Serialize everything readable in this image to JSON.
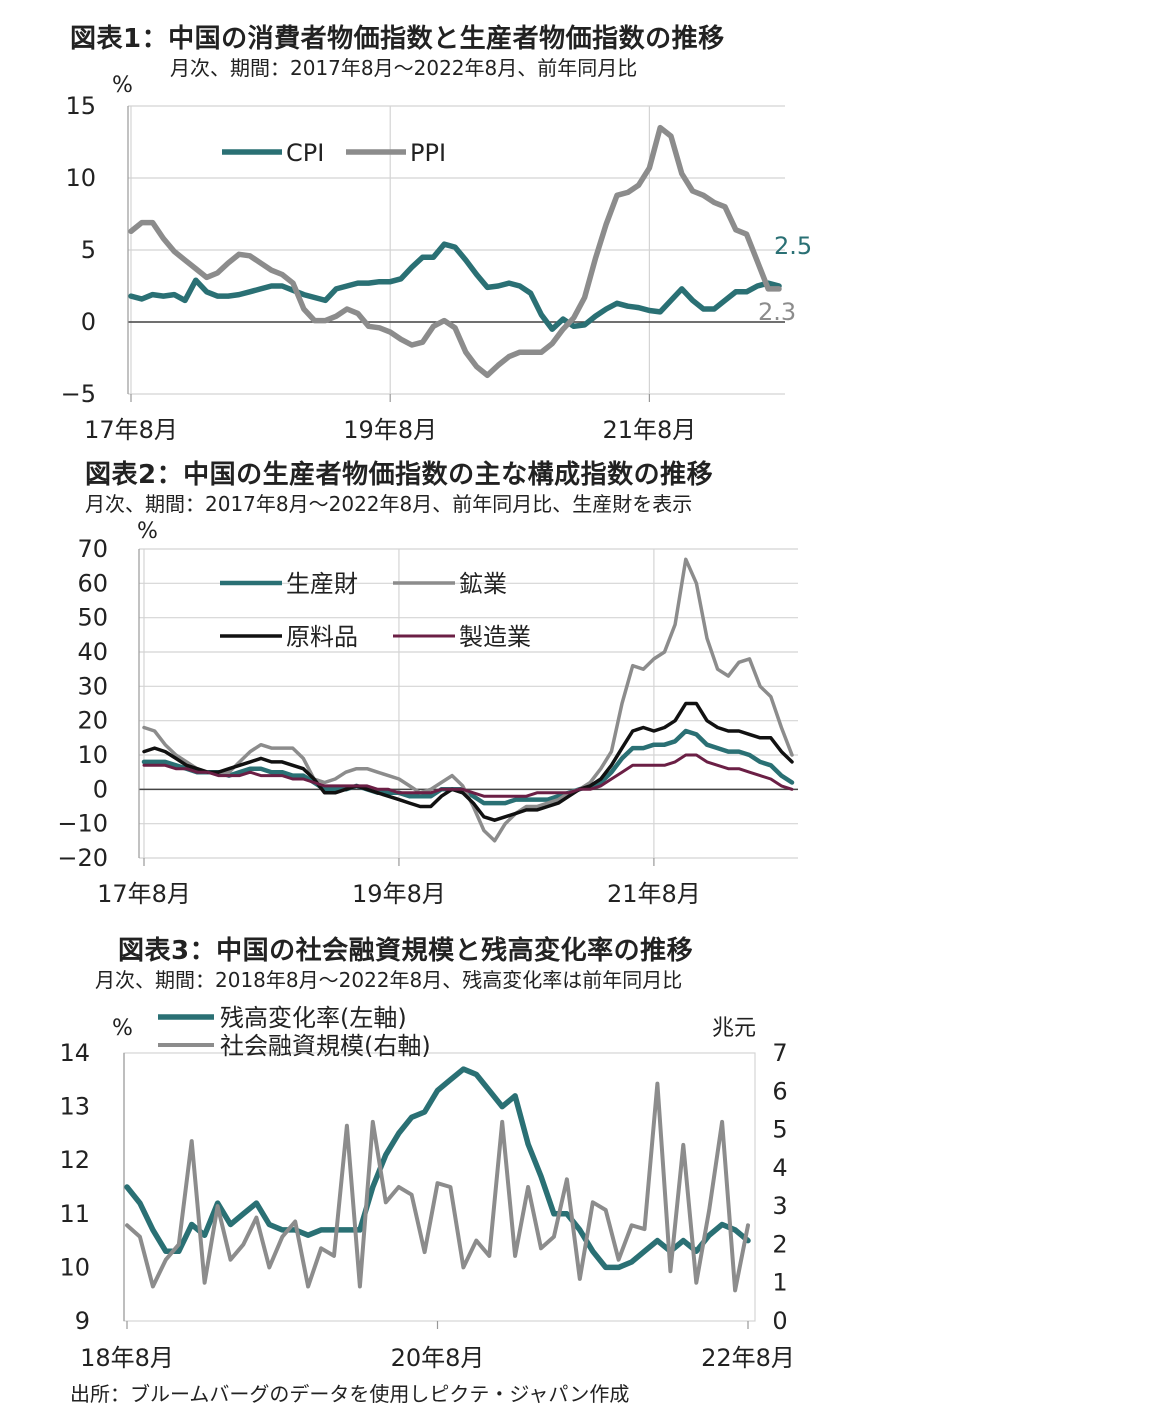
{
  "colors": {
    "teal": "#2a7074",
    "gray": "#8c8c8c",
    "black": "#111111",
    "maroon": "#6b1f45",
    "grid": "#d4d4d4"
  },
  "source": "出所：ブルームバーグのデータを使用しピクテ・ジャパン作成",
  "chart_data": [
    {
      "type": "line",
      "title": "図表1：中国の消費者物価指数と生産者物価指数の推移",
      "subtitle": "月次、期間：2017年8月～2022年8月、前年同月比",
      "unit": "%",
      "ylim": [
        -5,
        15
      ],
      "yticks": [
        -5,
        0,
        5,
        10,
        15
      ],
      "xlabels": [
        "17年8月",
        "19年8月",
        "21年8月"
      ],
      "xlabel_index": [
        0,
        24,
        48
      ],
      "grid": true,
      "legend_position": "top-left",
      "end_labels": {
        "CPI": "2.5",
        "PPI": "2.3"
      },
      "series": [
        {
          "name": "CPI",
          "color": "#2a7074",
          "values": [
            1.8,
            1.6,
            1.9,
            1.8,
            1.9,
            1.5,
            2.9,
            2.1,
            1.8,
            1.8,
            1.9,
            2.1,
            2.3,
            2.5,
            2.5,
            2.2,
            1.9,
            1.7,
            1.5,
            2.3,
            2.5,
            2.7,
            2.7,
            2.8,
            2.8,
            3.0,
            3.8,
            4.5,
            4.5,
            5.4,
            5.2,
            4.3,
            3.3,
            2.4,
            2.5,
            2.7,
            2.5,
            2.0,
            0.5,
            -0.5,
            0.2,
            -0.3,
            -0.2,
            0.4,
            0.9,
            1.3,
            1.1,
            1.0,
            0.8,
            0.7,
            1.5,
            2.3,
            1.5,
            0.9,
            0.9,
            1.5,
            2.1,
            2.1,
            2.5,
            2.7,
            2.5
          ]
        },
        {
          "name": "PPI",
          "color": "#8c8c8c",
          "values": [
            6.3,
            6.9,
            6.9,
            5.8,
            4.9,
            4.3,
            3.7,
            3.1,
            3.4,
            4.1,
            4.7,
            4.6,
            4.1,
            3.6,
            3.3,
            2.7,
            0.9,
            0.1,
            0.1,
            0.4,
            0.9,
            0.6,
            -0.3,
            -0.4,
            -0.7,
            -1.2,
            -1.6,
            -1.4,
            -0.3,
            0.1,
            -0.4,
            -2.1,
            -3.1,
            -3.7,
            -3.0,
            -2.4,
            -2.1,
            -2.1,
            -2.1,
            -1.5,
            -0.5,
            0.3,
            1.7,
            4.4,
            6.8,
            8.8,
            9.0,
            9.5,
            10.7,
            13.5,
            12.9,
            10.3,
            9.1,
            8.8,
            8.3,
            8.0,
            6.4,
            6.1,
            4.2,
            2.3,
            2.3
          ]
        }
      ]
    },
    {
      "type": "line",
      "title": "図表2：中国の生産者物価指数の主な構成指数の推移",
      "subtitle": "月次、期間：2017年8月～2022年8月、前年同月比、生産財を表示",
      "unit": "%",
      "ylim": [
        -20,
        70
      ],
      "yticks": [
        -20,
        -10,
        0,
        10,
        20,
        30,
        40,
        50,
        60,
        70
      ],
      "xlabels": [
        "17年8月",
        "19年8月",
        "21年8月"
      ],
      "xlabel_index": [
        0,
        24,
        48
      ],
      "grid": true,
      "legend_position": "top-left",
      "series": [
        {
          "name": "生産財",
          "color": "#2a7074",
          "values": [
            8,
            8,
            8,
            7,
            6,
            5,
            5,
            5,
            4,
            5,
            6,
            6,
            5,
            5,
            4,
            4,
            2,
            0,
            0,
            0,
            1,
            0,
            -1,
            -1,
            -1,
            -2,
            -2,
            -2,
            0,
            0,
            0,
            -2,
            -4,
            -4,
            -4,
            -3,
            -3,
            -3,
            -3,
            -2,
            -1,
            0,
            1,
            2,
            5,
            9,
            12,
            12,
            13,
            13,
            14,
            17,
            16,
            13,
            12,
            11,
            11,
            10,
            8,
            7,
            4,
            2
          ]
        },
        {
          "name": "鉱業",
          "color": "#8c8c8c",
          "values": [
            18,
            17,
            13,
            10,
            8,
            6,
            5,
            5,
            5,
            8,
            11,
            13,
            12,
            12,
            12,
            9,
            3,
            2,
            3,
            5,
            6,
            6,
            5,
            4,
            3,
            1,
            -1,
            0,
            2,
            4,
            1,
            -5,
            -12,
            -15,
            -10,
            -7,
            -5,
            -5,
            -4,
            -3,
            -1,
            0,
            2,
            6,
            11,
            25,
            36,
            35,
            38,
            40,
            48,
            67,
            60,
            44,
            35,
            33,
            37,
            38,
            30,
            27,
            18,
            10
          ]
        },
        {
          "name": "原料品",
          "color": "#111111",
          "values": [
            11,
            12,
            11,
            9,
            7,
            6,
            5,
            5,
            6,
            7,
            8,
            9,
            8,
            8,
            7,
            6,
            3,
            -1,
            -1,
            0,
            1,
            0,
            -1,
            -2,
            -3,
            -4,
            -5,
            -5,
            -2,
            0,
            -1,
            -4,
            -8,
            -9,
            -8,
            -7,
            -6,
            -6,
            -5,
            -4,
            -2,
            0,
            1,
            3,
            7,
            12,
            17,
            18,
            17,
            18,
            20,
            25,
            25,
            20,
            18,
            17,
            17,
            16,
            15,
            15,
            11,
            8
          ]
        },
        {
          "name": "製造業",
          "color": "#6b1f45",
          "values": [
            7,
            7,
            7,
            6,
            6,
            5,
            5,
            4,
            4,
            4,
            5,
            4,
            4,
            4,
            3,
            3,
            2,
            1,
            1,
            1,
            1,
            1,
            0,
            0,
            -1,
            -1,
            -1,
            -1,
            0,
            0,
            0,
            -1,
            -2,
            -2,
            -2,
            -2,
            -2,
            -1,
            -1,
            -1,
            -1,
            0,
            0,
            1,
            3,
            5,
            7,
            7,
            7,
            7,
            8,
            10,
            10,
            8,
            7,
            6,
            6,
            5,
            4,
            3,
            1,
            0
          ]
        }
      ]
    },
    {
      "type": "line",
      "title": "図表3：中国の社会融資規模と残高変化率の推移",
      "subtitle": "月次、期間：2018年8月～2022年8月、残高変化率は前年同月比",
      "unit_left": "%",
      "unit_right": "兆元",
      "ylim": [
        9,
        14
      ],
      "y2lim": [
        0,
        7
      ],
      "yticks": [
        9,
        10,
        11,
        12,
        13,
        14
      ],
      "y2ticks": [
        0,
        1,
        2,
        3,
        4,
        5,
        6,
        7
      ],
      "xlabels": [
        "18年8月",
        "20年8月",
        "22年8月"
      ],
      "xlabel_index": [
        0,
        24,
        48
      ],
      "grid": false,
      "legend_position": "top-left",
      "series": [
        {
          "name": "残高変化率(左軸)",
          "color": "#2a7074",
          "axis": "left",
          "values": [
            11.5,
            11.2,
            10.7,
            10.3,
            10.3,
            10.8,
            10.6,
            11.2,
            10.8,
            11.0,
            11.2,
            10.8,
            10.7,
            10.7,
            10.6,
            10.7,
            10.7,
            10.7,
            10.7,
            11.5,
            12.1,
            12.5,
            12.8,
            12.9,
            13.3,
            13.5,
            13.7,
            13.6,
            13.3,
            13.0,
            13.2,
            12.3,
            11.7,
            11.0,
            11.0,
            10.7,
            10.3,
            10.0,
            10.0,
            10.1,
            10.3,
            10.5,
            10.3,
            10.5,
            10.3,
            10.6,
            10.8,
            10.7,
            10.5
          ]
        },
        {
          "name": "社会融資規模(右軸)",
          "color": "#8c8c8c",
          "axis": "right",
          "values": [
            2.5,
            2.2,
            0.9,
            1.6,
            2.0,
            4.7,
            1.0,
            3.0,
            1.6,
            2.0,
            2.7,
            1.4,
            2.2,
            2.6,
            0.9,
            1.9,
            1.7,
            5.1,
            0.9,
            5.2,
            3.1,
            3.5,
            3.3,
            1.8,
            3.6,
            3.5,
            1.4,
            2.1,
            1.7,
            5.2,
            1.7,
            3.5,
            1.9,
            2.2,
            3.7,
            1.1,
            3.1,
            2.9,
            1.6,
            2.5,
            2.4,
            6.2,
            1.3,
            4.6,
            1.0,
            2.9,
            5.2,
            0.8,
            2.5
          ]
        }
      ]
    }
  ]
}
